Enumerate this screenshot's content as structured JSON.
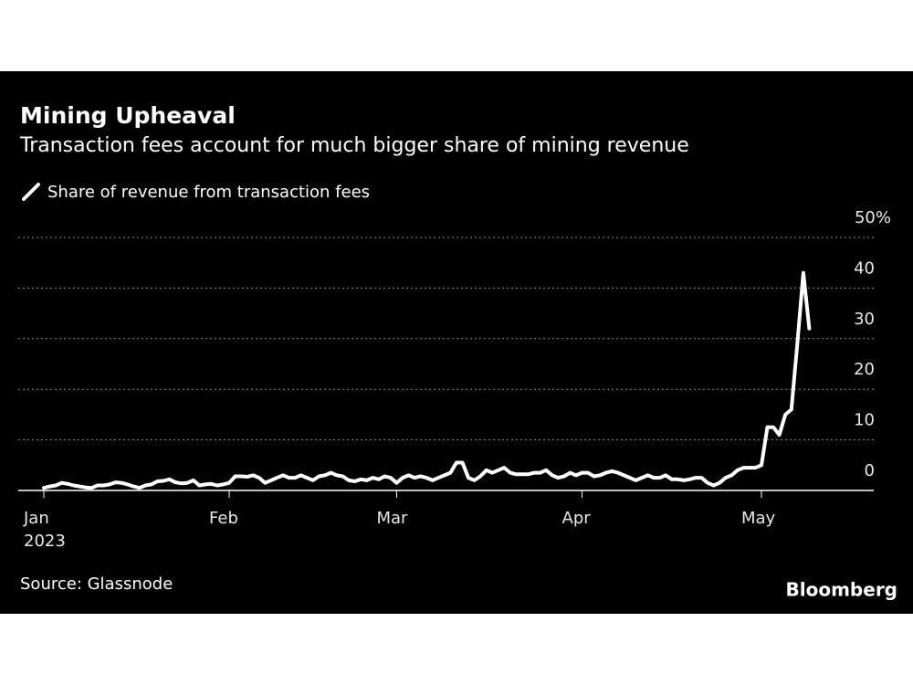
{
  "chart_data": {
    "type": "line",
    "title": "Mining Upheaval",
    "subtitle": "Transaction fees account for much bigger share of mining revenue",
    "categories": [
      "Jan",
      null,
      null,
      null,
      null,
      null,
      null,
      null,
      null,
      null,
      null,
      null,
      null,
      null,
      null,
      null,
      null,
      null,
      null,
      null,
      null,
      null,
      null,
      null,
      null,
      null,
      null,
      null,
      null,
      null,
      null,
      "Feb",
      null,
      null,
      null,
      null,
      null,
      null,
      null,
      null,
      null,
      null,
      null,
      null,
      null,
      null,
      null,
      null,
      null,
      null,
      null,
      null,
      null,
      null,
      null,
      null,
      null,
      null,
      null,
      "Mar",
      null,
      null,
      null,
      null,
      null,
      null,
      null,
      null,
      null,
      null,
      null,
      null,
      null,
      null,
      null,
      null,
      null,
      null,
      null,
      null,
      null,
      null,
      null,
      null,
      null,
      null,
      null,
      null,
      null,
      null,
      "Apr",
      null,
      null,
      null,
      null,
      null,
      null,
      null,
      null,
      null,
      null,
      null,
      null,
      null,
      null,
      null,
      null,
      null,
      null,
      null,
      null,
      null,
      null,
      null,
      null,
      null,
      null,
      null,
      null,
      null,
      "May",
      null,
      null,
      null,
      null,
      null,
      null,
      null,
      null
    ],
    "category_sublabel": "2023",
    "series": [
      {
        "name": "Share of revenue from transaction fees",
        "color": "#ffffff",
        "values": [
          0.5,
          0.8,
          1,
          1.5,
          1.3,
          1,
          0.8,
          0.6,
          0.5,
          1,
          1,
          1.2,
          1.6,
          1.5,
          1.2,
          0.8,
          0.5,
          1,
          1.2,
          1.8,
          1.9,
          2.2,
          1.6,
          1.4,
          1.5,
          2,
          1,
          1.2,
          1.3,
          1,
          1.2,
          1.5,
          2.8,
          2.8,
          2.7,
          3,
          2.5,
          1.5,
          2,
          2.5,
          3,
          2.5,
          2.5,
          3,
          2.5,
          2,
          2.8,
          3,
          3.5,
          3,
          2.8,
          2,
          1.8,
          2.2,
          2,
          2.5,
          2.2,
          2.8,
          2.5,
          1.5,
          2.5,
          3,
          2.5,
          2.8,
          2.5,
          2,
          2.5,
          3,
          3.5,
          5.5,
          5.5,
          2.5,
          2,
          2.8,
          4,
          3.5,
          4,
          4.5,
          3.5,
          3.2,
          3.2,
          3.2,
          3.5,
          3.5,
          4,
          3,
          2.5,
          2.8,
          3.5,
          3,
          3.5,
          3.5,
          2.8,
          3,
          3.5,
          3.8,
          3.5,
          3,
          2.5,
          2,
          2.5,
          3,
          2.5,
          2.5,
          3,
          2.2,
          2.2,
          2,
          2.2,
          2.5,
          2.5,
          1.5,
          1,
          1.5,
          2.5,
          3,
          4,
          4.5,
          4.5,
          4.5,
          5,
          12.5,
          12.5,
          11,
          15,
          16,
          29,
          43,
          32
        ]
      }
    ],
    "ylim": [
      0,
      50
    ],
    "yticks": [
      0,
      10,
      20,
      30,
      40,
      {
        "value": 50,
        "label": "50%"
      }
    ],
    "grid": true,
    "source": "Source: Glassnode",
    "logo": "Bloomberg"
  }
}
